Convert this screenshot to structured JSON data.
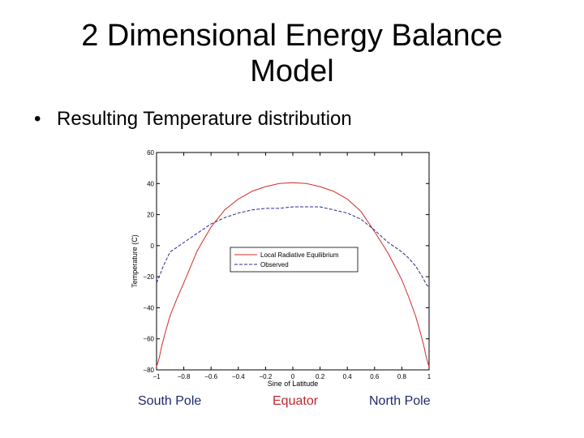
{
  "slide": {
    "title_line1": "2 Dimensional Energy Balance",
    "title_line2": "Model",
    "bullet": "Resulting Temperature distribution",
    "labels": {
      "south": "South Pole",
      "equator": "Equator",
      "north": "North Pole"
    },
    "label_colors": {
      "south": "#1f2a6b",
      "equator": "#c0282d",
      "north": "#1f2a6b"
    }
  },
  "chart_data": {
    "type": "line",
    "xlabel": "Sine of Latitude",
    "ylabel": "Temperature (C)",
    "xlim": [
      -1,
      1
    ],
    "ylim": [
      -80,
      60
    ],
    "xticks": [
      -1,
      -0.8,
      -0.6,
      -0.4,
      -0.2,
      0,
      0.2,
      0.4,
      0.6,
      0.8,
      1
    ],
    "yticks": [
      60,
      40,
      20,
      0,
      -20,
      -40,
      -60,
      -80
    ],
    "legend_position": "center",
    "series": [
      {
        "name": "Local Radiative Equilibrium",
        "color": "#d42a2a",
        "dash": "solid",
        "x": [
          -1,
          -0.98,
          -0.96,
          -0.93,
          -0.9,
          -0.85,
          -0.8,
          -0.7,
          -0.6,
          -0.5,
          -0.4,
          -0.3,
          -0.2,
          -0.1,
          0,
          0.1,
          0.2,
          0.3,
          0.4,
          0.5,
          0.6,
          0.7,
          0.8,
          0.85,
          0.9,
          0.93,
          0.96,
          0.98,
          1
        ],
        "y": [
          -78,
          -72,
          -64,
          -54,
          -45,
          -34,
          -24,
          -3,
          12,
          23,
          30,
          35,
          38,
          40,
          40.5,
          40,
          38,
          35,
          30,
          22,
          9,
          -5,
          -22,
          -33,
          -45,
          -54,
          -64,
          -72,
          -78
        ]
      },
      {
        "name": "Observed",
        "color": "#2b2b8a",
        "dash": "4,2",
        "x": [
          -1,
          -0.98,
          -0.95,
          -0.9,
          -0.85,
          -0.8,
          -0.7,
          -0.6,
          -0.5,
          -0.4,
          -0.3,
          -0.2,
          -0.1,
          0,
          0.1,
          0.2,
          0.3,
          0.4,
          0.5,
          0.6,
          0.7,
          0.8,
          0.85,
          0.9,
          0.95,
          0.98,
          1
        ],
        "y": [
          -24,
          -20,
          -13,
          -4,
          -1,
          2,
          8,
          14,
          18,
          21,
          23,
          24,
          24,
          25,
          25,
          25,
          23,
          21,
          17,
          10,
          2,
          -4,
          -8,
          -13,
          -20,
          -25,
          -27
        ]
      }
    ]
  }
}
